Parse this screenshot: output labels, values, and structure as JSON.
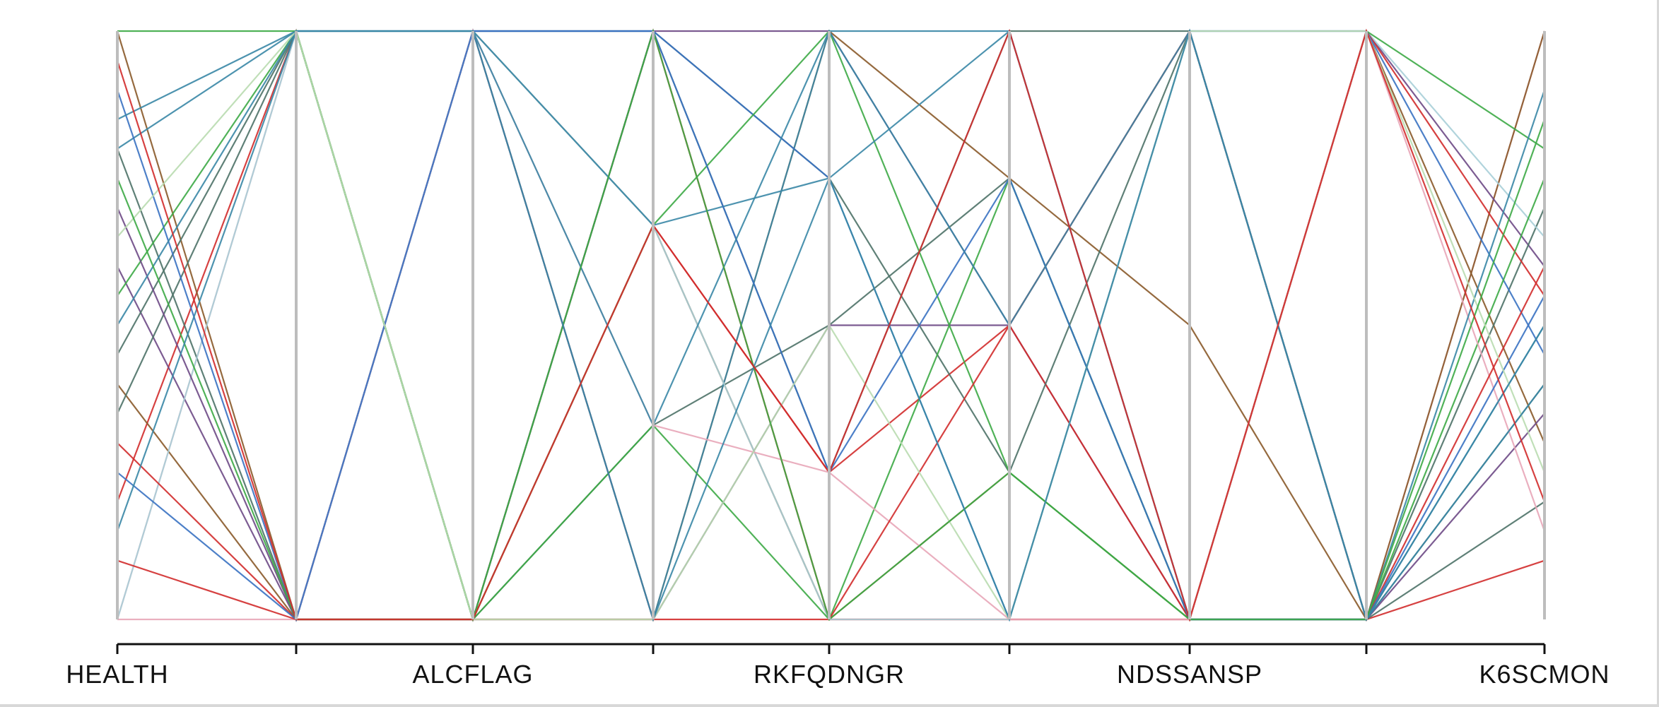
{
  "chart_data": {
    "type": "parallel-coordinates",
    "dimensions": [
      "HEALTH",
      "ALCFLAG",
      "RKFQDNGR",
      "NDSSANSP",
      "K6SCMON"
    ],
    "axis_count": 9,
    "labelled_axes": [
      0,
      2,
      4,
      6,
      8
    ],
    "grid": false,
    "legend": "none",
    "colors": {
      "axis": "#bdbdbd",
      "frame": "#d8d8d8",
      "teal": "#3a87a6",
      "green": "#3daa46",
      "red": "#d12c2c",
      "blue": "#3a72c2",
      "pink": "#e8a6b8",
      "brown": "#8a5a2a",
      "slate": "#4e7268",
      "purple": "#6e4a86",
      "lightteal": "#a9cfd8",
      "lightgreen": "#b9dcb0"
    },
    "series": [
      {
        "values": [
          0.0,
          1.0,
          0.0,
          1.0,
          0.0,
          0.0,
          0.0,
          0.0,
          1.0
        ],
        "color": "pink"
      },
      {
        "values": [
          0.2,
          1.0,
          0.0,
          1.0,
          0.0,
          0.0,
          0.0,
          0.0,
          0.1
        ],
        "color": "red"
      },
      {
        "values": [
          0.4,
          0.0,
          1.0,
          0.0,
          1.0,
          0.75,
          0.5,
          0.0,
          1.0
        ],
        "color": "brown"
      },
      {
        "values": [
          0.6,
          0.0,
          0.0,
          1.0,
          1.0,
          0.5,
          0.0,
          1.0,
          0.6
        ],
        "color": "purple"
      },
      {
        "values": [
          0.8,
          0.0,
          1.0,
          1.0,
          0.25,
          1.0,
          1.0,
          0.0,
          0.4
        ],
        "color": "slate"
      },
      {
        "values": [
          1.0,
          0.0,
          1.0,
          0.67,
          0.0,
          0.25,
          0.0,
          1.0,
          0.3
        ],
        "color": "brown"
      },
      {
        "values": [
          0.45,
          1.0,
          0.0,
          0.33,
          0.5,
          0.75,
          0.0,
          0.0,
          0.7
        ],
        "color": "slate"
      },
      {
        "values": [
          0.8,
          1.0,
          0.0,
          0.0,
          1.0,
          1.0,
          0.0,
          0.0,
          0.5
        ],
        "color": "teal"
      },
      {
        "values": [
          0.0,
          1.0,
          1.0,
          0.67,
          0.0,
          0.0,
          1.0,
          1.0,
          0.65
        ],
        "color": "lightteal"
      },
      {
        "values": [
          0.3,
          0.0,
          0.0,
          0.67,
          0.25,
          0.5,
          0.0,
          1.0,
          0.55
        ],
        "color": "red"
      },
      {
        "values": [
          0.35,
          1.0,
          0.0,
          1.0,
          0.75,
          0.25,
          1.0,
          0.0,
          0.2
        ],
        "color": "slate"
      },
      {
        "values": [
          0.55,
          1.0,
          0.0,
          0.33,
          0.0,
          0.75,
          0.0,
          1.0,
          0.8
        ],
        "color": "green"
      },
      {
        "values": [
          0.7,
          0.0,
          1.0,
          0.0,
          0.5,
          0.5,
          1.0,
          0.0,
          0.35
        ],
        "color": "purple"
      },
      {
        "values": [
          0.9,
          0.0,
          1.0,
          1.0,
          0.75,
          0.0,
          1.0,
          1.0,
          0.45
        ],
        "color": "blue"
      },
      {
        "values": [
          1.0,
          1.0,
          0.0,
          0.67,
          1.0,
          0.25,
          0.0,
          0.0,
          0.75
        ],
        "color": "green"
      },
      {
        "values": [
          0.0,
          0.0,
          1.0,
          0.33,
          0.25,
          0.0,
          0.0,
          1.0,
          0.15
        ],
        "color": "pink"
      },
      {
        "values": [
          0.1,
          0.0,
          0.0,
          0.0,
          0.0,
          0.5,
          1.0,
          0.0,
          0.6
        ],
        "color": "red"
      },
      {
        "values": [
          0.5,
          1.0,
          1.0,
          0.67,
          0.75,
          1.0,
          0.0,
          0.0,
          0.9
        ],
        "color": "teal"
      },
      {
        "values": [
          0.25,
          0.0,
          1.0,
          1.0,
          0.25,
          0.75,
          0.0,
          0.0,
          0.55
        ],
        "color": "blue"
      },
      {
        "values": [
          0.65,
          1.0,
          0.0,
          0.0,
          0.5,
          0.0,
          1.0,
          1.0,
          0.25
        ],
        "color": "lightgreen"
      },
      {
        "values": [
          0.85,
          1.0,
          1.0,
          0.33,
          1.0,
          0.5,
          1.0,
          0.0,
          0.5
        ],
        "color": "teal"
      },
      {
        "values": [
          0.75,
          0.0,
          0.0,
          1.0,
          0.0,
          0.25,
          0.0,
          0.0,
          0.85
        ],
        "color": "green"
      },
      {
        "values": [
          0.15,
          1.0,
          1.0,
          0.0,
          0.75,
          0.0,
          1.0,
          0.0,
          0.4
        ],
        "color": "teal"
      },
      {
        "values": [
          0.95,
          0.0,
          0.0,
          0.67,
          0.25,
          1.0,
          0.0,
          1.0,
          0.2
        ],
        "color": "red"
      }
    ]
  }
}
